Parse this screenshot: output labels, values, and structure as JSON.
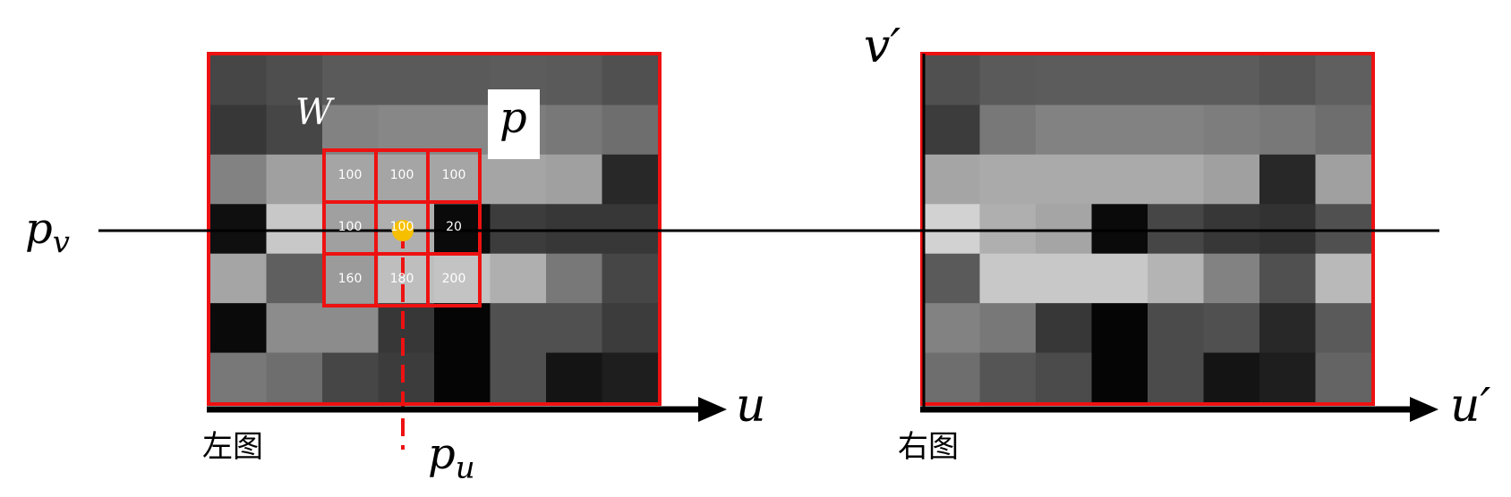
{
  "left_image": {
    "caption": "左图",
    "axis_label": "u",
    "grid_gray": [
      [
        70,
        78,
        90,
        90,
        90,
        92,
        90,
        80
      ],
      [
        55,
        70,
        130,
        135,
        135,
        125,
        120,
        110
      ],
      [
        130,
        160,
        165,
        165,
        165,
        165,
        160,
        40
      ],
      [
        15,
        200,
        160,
        175,
        10,
        60,
        55,
        55
      ],
      [
        165,
        95,
        155,
        190,
        195,
        175,
        120,
        70
      ],
      [
        10,
        140,
        140,
        55,
        5,
        80,
        80,
        60
      ],
      [
        120,
        110,
        70,
        60,
        5,
        80,
        20,
        30
      ]
    ],
    "window": {
      "label": "W",
      "values": [
        [
          "100",
          "100",
          "100"
        ],
        [
          "100",
          "100",
          "20"
        ],
        [
          "160",
          "180",
          "200"
        ]
      ]
    },
    "pixel_label": "p",
    "row_label": "p_v",
    "col_label": "p_u"
  },
  "right_image": {
    "caption": "右图",
    "axis_label": "u′",
    "vertical_label": "v′",
    "grid_gray": [
      [
        80,
        90,
        92,
        92,
        92,
        92,
        85,
        95
      ],
      [
        60,
        120,
        130,
        130,
        130,
        125,
        120,
        110
      ],
      [
        165,
        170,
        170,
        170,
        170,
        160,
        40,
        160
      ],
      [
        210,
        175,
        165,
        10,
        70,
        55,
        50,
        80
      ],
      [
        90,
        200,
        200,
        200,
        180,
        130,
        80,
        185
      ],
      [
        130,
        120,
        55,
        5,
        75,
        80,
        40,
        90
      ],
      [
        110,
        85,
        75,
        5,
        75,
        20,
        30,
        100
      ]
    ]
  },
  "colors": {
    "frame": "#ee1111",
    "point": "#f6c000",
    "line": "#000000"
  }
}
